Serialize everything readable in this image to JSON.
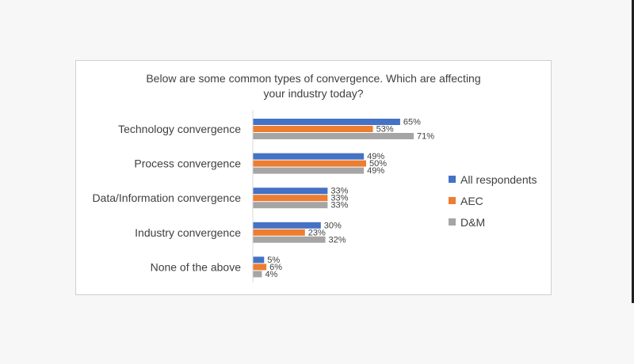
{
  "chart_data": {
    "type": "bar",
    "orientation": "horizontal",
    "title": "Below are some common types of convergence. Which are affecting your industry today?",
    "title_lines": [
      "Below are some common types of convergence. Which are affecting",
      "your industry today?"
    ],
    "categories": [
      "Technology convergence",
      "Process convergence",
      "Data/Information convergence",
      "Industry convergence",
      "None of the above"
    ],
    "series": [
      {
        "name": "All respondents",
        "color": "#4472c4",
        "values": [
          65,
          49,
          33,
          30,
          5
        ]
      },
      {
        "name": "AEC",
        "color": "#ed7d31",
        "values": [
          53,
          50,
          33,
          23,
          6
        ]
      },
      {
        "name": "D&M",
        "color": "#a5a5a5",
        "values": [
          71,
          49,
          33,
          32,
          4
        ]
      }
    ],
    "value_suffix": "%",
    "xlim": [
      0,
      100
    ],
    "grid": false,
    "legend_position": "right"
  }
}
